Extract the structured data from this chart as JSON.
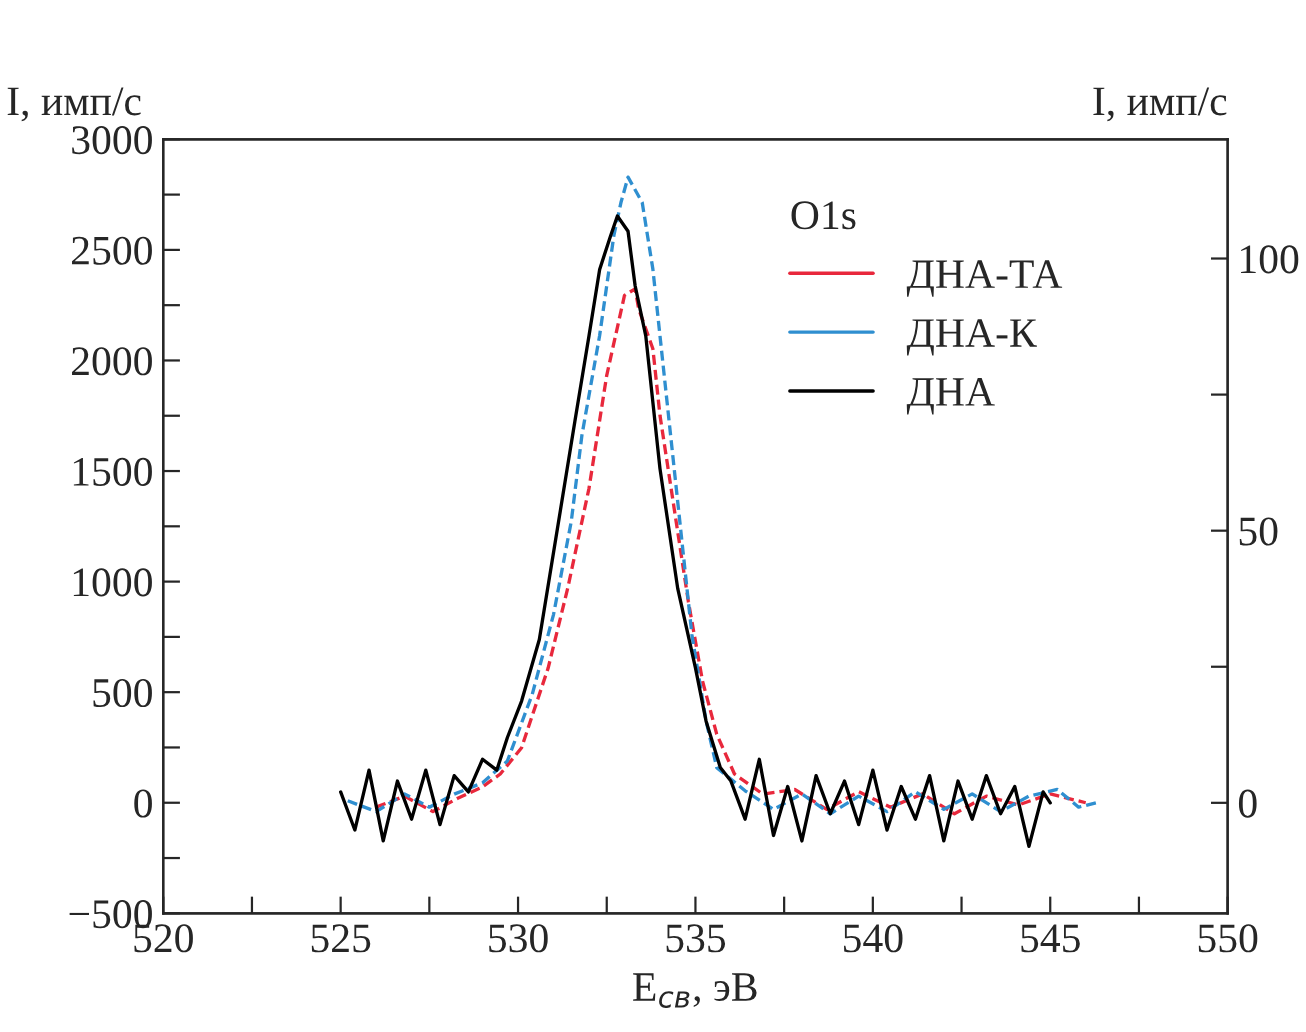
{
  "chart_data": {
    "type": "line",
    "xlabel": "E$_{св}$, эВ",
    "ylabel": "I, имп/с",
    "y2label": "I, имп/с",
    "legend_title": "O1s",
    "xlim": [
      520,
      550
    ],
    "xticks": [
      520,
      {
        "value": 522.5,
        "label": null
      },
      525,
      {
        "value": 527.5,
        "label": null
      },
      530,
      {
        "value": 532.5,
        "label": null
      },
      535,
      {
        "value": 537.5,
        "label": null
      },
      540,
      {
        "value": 542.5,
        "label": null
      },
      545,
      {
        "value": 547.5,
        "label": null
      },
      550
    ],
    "ylim": [
      -500,
      3000
    ],
    "yticks": [
      -500,
      {
        "value": -250,
        "label": null
      },
      0,
      {
        "value": 250,
        "label": null
      },
      500,
      {
        "value": 750,
        "label": null
      },
      1000,
      {
        "value": 1250,
        "label": null
      },
      1500,
      {
        "value": 1750,
        "label": null
      },
      2000,
      {
        "value": 2250,
        "label": null
      },
      2500,
      {
        "value": 2750,
        "label": null
      },
      3000
    ],
    "y2lim": [
      -20.3,
      121.9
    ],
    "y2ticks": [
      0,
      {
        "value": 25,
        "label": null
      },
      50,
      {
        "value": 75,
        "label": null
      },
      100
    ],
    "legend": "top right",
    "grid": false,
    "series": [
      {
        "name": "ДНА-ТА",
        "color": "#e8283c",
        "line_style": "dashed",
        "x": [
          526.0,
          526.8,
          527.6,
          528.3,
          528.97,
          529.5,
          530.1,
          530.85,
          531.4,
          532.0,
          532.5,
          533.0,
          533.3,
          533.4,
          533.8,
          534.0,
          534.4,
          534.8,
          535.2,
          535.6,
          536.1,
          536.9,
          537.8,
          538.7,
          539.6,
          540.5,
          541.4,
          542.3,
          543.2,
          544.1,
          545.0,
          546.0
        ],
        "values": [
          -20,
          30,
          -40,
          20,
          69,
          130,
          249,
          610,
          970,
          1422,
          1933,
          2294,
          2324,
          2233,
          2053,
          1752,
          1331,
          910,
          550,
          310,
          130,
          39,
          60,
          -30,
          50,
          -20,
          40,
          -50,
          30,
          -10,
          40,
          0
        ]
      },
      {
        "name": "ДНА-К",
        "color": "#2f8fd0",
        "line_style": "dashed",
        "x": [
          525.2,
          526.0,
          526.8,
          527.5,
          528.2,
          529.0,
          529.7,
          530.4,
          531.0,
          531.5,
          531.8,
          532.3,
          532.7,
          532.9,
          533.1,
          533.5,
          533.8,
          534.1,
          534.3,
          534.6,
          534.9,
          535.3,
          535.6,
          536.4,
          537.2,
          538.0,
          538.8,
          539.6,
          540.4,
          541.2,
          542.0,
          542.8,
          543.6,
          544.4,
          545.2,
          545.8,
          546.3
        ],
        "values": [
          9,
          -40,
          40,
          -20,
          39,
          90,
          189,
          490,
          851,
          1272,
          1662,
          2113,
          2564,
          2714,
          2829,
          2714,
          2413,
          1962,
          1662,
          1211,
          760,
          370,
          159,
          54,
          -30,
          40,
          -50,
          30,
          -40,
          50,
          -30,
          40,
          -40,
          30,
          60,
          -20,
          0
        ]
      },
      {
        "name": "ДНА",
        "color": "#000000",
        "line_style": "solid",
        "axis": "y2",
        "x": [
          525.0,
          525.4,
          525.8,
          526.2,
          526.6,
          527.0,
          527.4,
          527.8,
          528.2,
          528.6,
          529.0,
          529.4,
          529.7,
          530.1,
          530.6,
          531.2,
          531.6,
          532.0,
          532.3,
          532.6,
          532.8,
          533.1,
          533.3,
          533.6,
          534.0,
          534.5,
          535.0,
          535.3,
          535.7,
          536.0,
          536.4,
          536.8,
          537.2,
          537.6,
          538.0,
          538.4,
          538.8,
          539.2,
          539.6,
          540.0,
          540.4,
          540.8,
          541.2,
          541.6,
          542.0,
          542.4,
          542.8,
          543.2,
          543.6,
          544.0,
          544.4,
          544.8,
          545.0
        ],
        "values": [
          2,
          -5,
          6,
          -7,
          4,
          -3,
          6,
          -4,
          5,
          2,
          8,
          6,
          12,
          18.7,
          30,
          54,
          70,
          85.8,
          98,
          104,
          107.8,
          105,
          95,
          85.8,
          61.4,
          39.4,
          24.8,
          15,
          6.5,
          4,
          -3,
          8,
          -6,
          3,
          -7,
          5,
          -2,
          4,
          -4,
          6,
          -5,
          3,
          -3,
          5,
          -7,
          4,
          -3,
          5,
          -2,
          3,
          -8,
          2,
          0
        ]
      }
    ]
  }
}
